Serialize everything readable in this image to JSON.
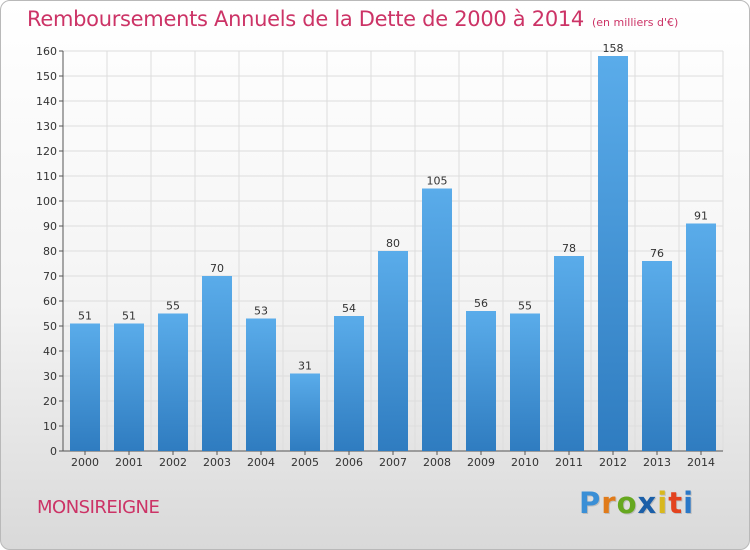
{
  "header": {
    "title": "Remboursements Annuels de la Dette de 2000 à 2014",
    "subtitle": "(en milliers d'€)"
  },
  "footer": {
    "town": "MONSIREIGNE",
    "logo_letters": [
      "P",
      "r",
      "o",
      "x",
      "i",
      "t",
      "i"
    ]
  },
  "colors": {
    "title": "#cc3366",
    "bar_top": "#5aacea",
    "bar_bottom": "#2f7cc0",
    "grid": "#dddddd"
  },
  "chart_data": {
    "type": "bar",
    "title": "Remboursements Annuels de la Dette de 2000 à 2014",
    "subtitle": "(en milliers d'€)",
    "xlabel": "",
    "ylabel": "",
    "categories": [
      "2000",
      "2001",
      "2002",
      "2003",
      "2004",
      "2005",
      "2006",
      "2007",
      "2008",
      "2009",
      "2010",
      "2011",
      "2012",
      "2013",
      "2014"
    ],
    "values": [
      51,
      51,
      55,
      70,
      53,
      31,
      54,
      80,
      105,
      56,
      55,
      78,
      158,
      76,
      91
    ],
    "ylim": [
      0,
      160
    ],
    "yticks": [
      0,
      10,
      20,
      30,
      40,
      50,
      60,
      70,
      80,
      90,
      100,
      110,
      120,
      130,
      140,
      150,
      160
    ],
    "grid": true,
    "data_labels": true
  }
}
